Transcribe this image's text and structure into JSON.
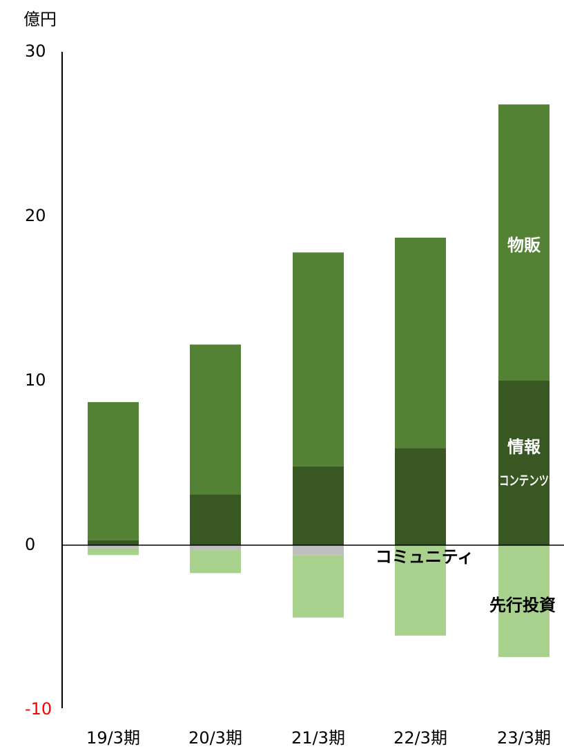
{
  "chart_data": {
    "type": "bar",
    "stacked": true,
    "unit": "億円",
    "categories": [
      "19/3期",
      "20/3期",
      "21/3期",
      "22/3期",
      "23/3期"
    ],
    "ylim": [
      -10,
      30
    ],
    "yticks": [
      "30",
      "20",
      "10",
      "0",
      "-10"
    ],
    "series": [
      {
        "name": "情報コンテンツ",
        "values": [
          0.3,
          3.1,
          4.8,
          5.9,
          10.0
        ],
        "color": "#385723"
      },
      {
        "name": "物販",
        "values": [
          8.4,
          9.1,
          13.0,
          12.8,
          16.8
        ],
        "color": "#548235"
      },
      {
        "name": "コミュニティ",
        "values": [
          -0.2,
          -0.3,
          -0.6,
          0.0,
          0.0
        ],
        "color": "#bfbfbf"
      },
      {
        "name": "先行投資",
        "values": [
          -0.4,
          -1.4,
          -3.8,
          -5.5,
          -6.8
        ],
        "color": "#a9d18e"
      }
    ],
    "labels": {
      "butsuhan": "物販",
      "joho_line1": "情報",
      "joho_line2": "コンテンツ",
      "community": "コミュニティ",
      "investment": "先行投資"
    },
    "negative_tick_color": "#ff0000",
    "grid": false
  }
}
